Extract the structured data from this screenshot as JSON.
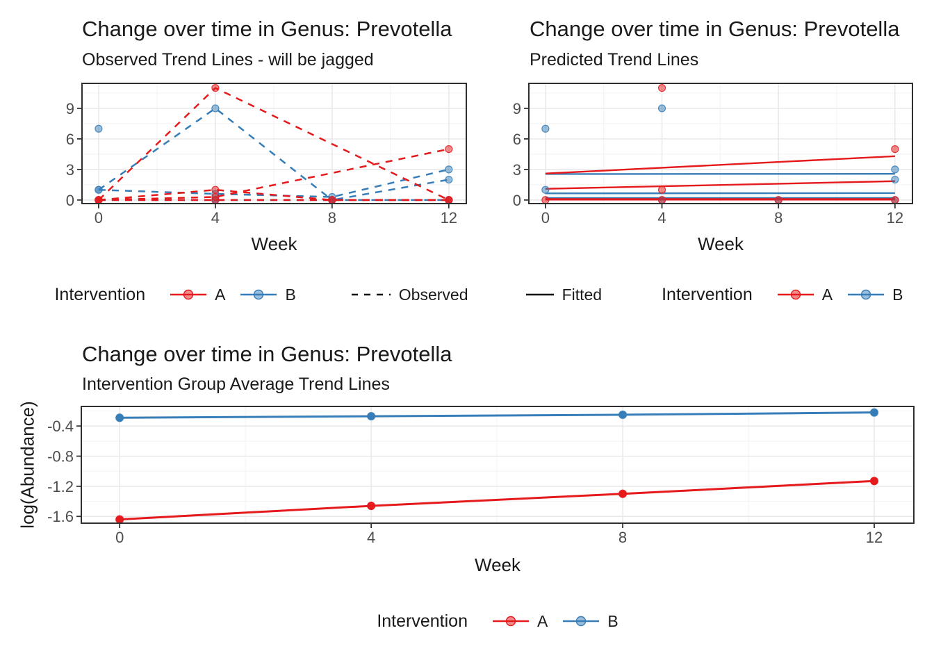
{
  "palette": {
    "intervention_a": "#E41A1C",
    "intervention_b": "#377EB8",
    "legend_line": "#000000",
    "grid_major": "#E7E7E7",
    "grid_minor": "#F4F4F4",
    "panel_border": "#2F2F2F",
    "tick_mark": "#333333",
    "tick_label": "#4D4D4D",
    "text": "#1A1A1A",
    "background": "#FFFFFF"
  },
  "chart_data": [
    {
      "type": "line",
      "title": "Change over time in Genus: Prevotella",
      "subtitle": "Observed Trend Lines - will be jagged",
      "xlabel": "Week",
      "x_ticks": [
        0,
        4,
        8,
        12
      ],
      "y_ticks": [
        0,
        3,
        6,
        9
      ],
      "xlim": [
        -0.57,
        12.6
      ],
      "ylim": [
        -0.35,
        11.45
      ],
      "grid": true,
      "line_style": "dashed",
      "series": [
        {
          "group": "B",
          "subject": "B1",
          "x": [
            0,
            4,
            8,
            12
          ],
          "y": [
            1,
            9,
            0,
            0
          ]
        },
        {
          "group": "B",
          "subject": "B2",
          "x": [
            0
          ],
          "y": [
            7
          ]
        },
        {
          "group": "B",
          "subject": "B3",
          "x": [
            0,
            4,
            8,
            12
          ],
          "y": [
            1,
            0.6,
            0.3,
            3
          ]
        },
        {
          "group": "B",
          "subject": "B4",
          "x": [
            0,
            4,
            8,
            12
          ],
          "y": [
            0,
            0,
            0,
            2
          ]
        },
        {
          "group": "B",
          "subject": "B5",
          "x": [
            0,
            4,
            8,
            12
          ],
          "y": [
            0,
            0,
            0,
            0
          ]
        },
        {
          "group": "A",
          "subject": "A1",
          "x": [
            0,
            4,
            12
          ],
          "y": [
            0,
            11,
            0
          ]
        },
        {
          "group": "A",
          "subject": "A2",
          "x": [
            0,
            4,
            12
          ],
          "y": [
            0,
            0.3,
            5
          ]
        },
        {
          "group": "A",
          "subject": "A3",
          "x": [
            0,
            4,
            8,
            12
          ],
          "y": [
            0,
            1,
            0,
            0
          ]
        },
        {
          "group": "A",
          "subject": "A4",
          "x": [
            0,
            4,
            8,
            12
          ],
          "y": [
            0,
            0,
            0,
            0
          ]
        }
      ]
    },
    {
      "type": "scatter+fitted-lines",
      "title": "Change over time in Genus: Prevotella",
      "subtitle": "Predicted Trend Lines",
      "xlabel": "Week",
      "x_ticks": [
        0,
        4,
        8,
        12
      ],
      "y_ticks": [
        0,
        3,
        6,
        9
      ],
      "xlim": [
        -0.57,
        12.6
      ],
      "ylim": [
        -0.35,
        11.45
      ],
      "grid": true,
      "fitted": [
        {
          "group": "B",
          "y_start": 2.55,
          "y_end": 2.57
        },
        {
          "group": "B",
          "y_start": 0.65,
          "y_end": 0.68
        },
        {
          "group": "B",
          "y_start": 0.2,
          "y_end": 0.2
        },
        {
          "group": "B",
          "y_start": 0.1,
          "y_end": 0.12
        },
        {
          "group": "A",
          "y_start": 2.6,
          "y_end": 4.3
        },
        {
          "group": "A",
          "y_start": 1.1,
          "y_end": 1.85
        },
        {
          "group": "A",
          "y_start": 0.04,
          "y_end": 0.04
        },
        {
          "group": "A",
          "y_start": 0.1,
          "y_end": 0.1
        }
      ],
      "points": [
        {
          "group": "B",
          "x": 0,
          "y": 7
        },
        {
          "group": "B",
          "x": 0,
          "y": 1
        },
        {
          "group": "B",
          "x": 4,
          "y": 9
        },
        {
          "group": "B",
          "x": 4,
          "y": 0
        },
        {
          "group": "B",
          "x": 8,
          "y": 0
        },
        {
          "group": "B",
          "x": 12,
          "y": 3
        },
        {
          "group": "B",
          "x": 12,
          "y": 2
        },
        {
          "group": "B",
          "x": 12,
          "y": 0
        },
        {
          "group": "A",
          "x": 0,
          "y": 0
        },
        {
          "group": "A",
          "x": 4,
          "y": 11
        },
        {
          "group": "A",
          "x": 4,
          "y": 1
        },
        {
          "group": "A",
          "x": 4,
          "y": 0
        },
        {
          "group": "A",
          "x": 8,
          "y": 0
        },
        {
          "group": "A",
          "x": 12,
          "y": 5
        },
        {
          "group": "A",
          "x": 12,
          "y": 0
        }
      ]
    },
    {
      "type": "line",
      "title": "Change over time in Genus: Prevotella",
      "subtitle": "Intervention Group Average Trend Lines",
      "xlabel": "Week",
      "ylabel": "log(Abundance)",
      "x_ticks": [
        0,
        4,
        8,
        12
      ],
      "y_ticks": [
        -1.6,
        -1.2,
        -0.8,
        -0.4
      ],
      "xlim": [
        -0.61,
        12.63
      ],
      "ylim": [
        -1.69,
        -0.14
      ],
      "grid": true,
      "line_style": "solid",
      "series": [
        {
          "group": "B",
          "subject": "B-average",
          "x": [
            0,
            4,
            8,
            12
          ],
          "y": [
            -0.29,
            -0.27,
            -0.25,
            -0.22
          ]
        },
        {
          "group": "A",
          "subject": "A-average",
          "x": [
            0,
            4,
            8,
            12
          ],
          "y": [
            -1.64,
            -1.46,
            -1.3,
            -1.13
          ]
        }
      ]
    }
  ],
  "legends": [
    {
      "title": "Intervention",
      "items": [
        {
          "label": "A",
          "color": "#E41A1C"
        },
        {
          "label": "B",
          "color": "#377EB8"
        }
      ],
      "line_items": [
        {
          "label": "Observed",
          "linetype": "dashed"
        }
      ]
    },
    {
      "line_items": [
        {
          "label": "Fitted",
          "linetype": "solid"
        }
      ],
      "title": "Intervention",
      "items": [
        {
          "label": "A",
          "color": "#E41A1C"
        },
        {
          "label": "B",
          "color": "#377EB8"
        }
      ]
    },
    {
      "title": "Intervention",
      "items": [
        {
          "label": "A",
          "color": "#E41A1C"
        },
        {
          "label": "B",
          "color": "#377EB8"
        }
      ]
    }
  ]
}
